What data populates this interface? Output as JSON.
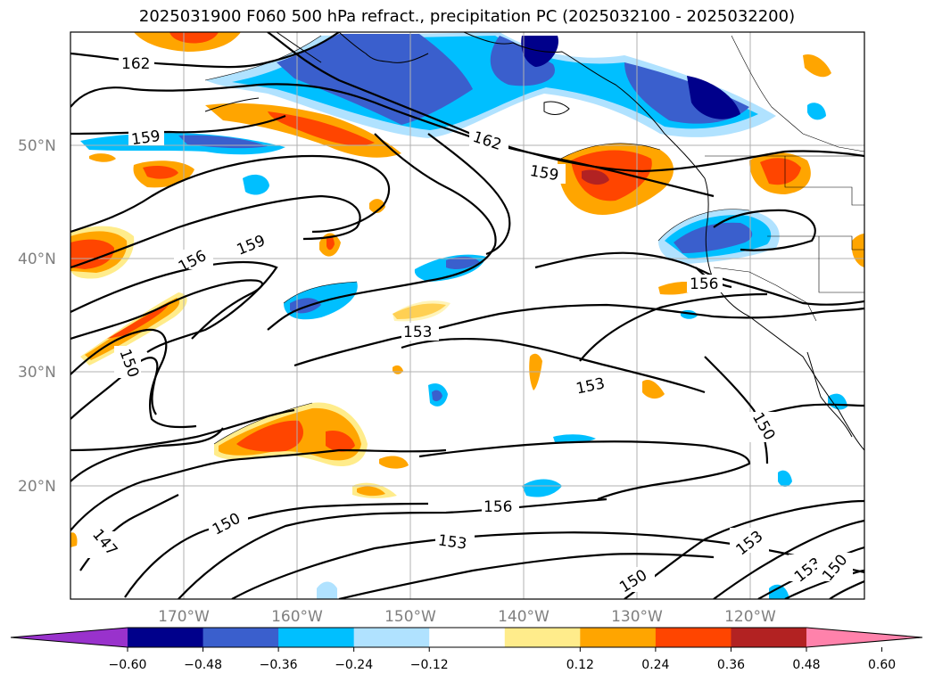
{
  "title": "2025031900 F060 500 hPa refract., precipitation PC (2025032100 - 2025032200)",
  "latitude_labels": [
    "50°N",
    "40°N",
    "30°N",
    "20°N"
  ],
  "longitude_labels": [
    "170°W",
    "160°W",
    "150°W",
    "140°W",
    "130°W",
    "120°W"
  ],
  "colorbar": {
    "colors": [
      "#9932cc",
      "#00008b",
      "#3a5fcd",
      "#00bfff",
      "#b0e2ff",
      "#ffffff",
      "#ffec8b",
      "#ffa500",
      "#ff4500",
      "#b22222",
      "#ff82ab"
    ],
    "tick_labels": [
      "−0.60",
      "−0.48",
      "−0.36",
      "−0.24",
      "−0.12",
      "0.12",
      "0.24",
      "0.36",
      "0.48",
      "0.60"
    ]
  },
  "contour_labels": [
    "162",
    "159",
    "162",
    "159",
    "159",
    "156",
    "156",
    "153",
    "150",
    "153",
    "150",
    "150",
    "147",
    "156",
    "153",
    "153",
    "153",
    "150",
    "150"
  ]
}
